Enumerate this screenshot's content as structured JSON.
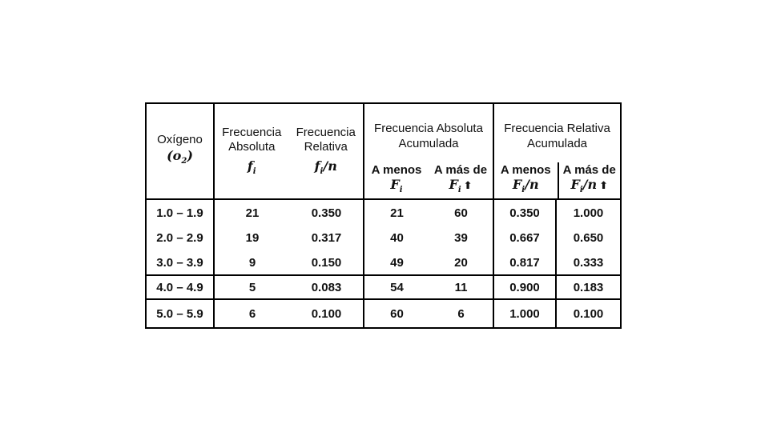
{
  "slide": {
    "background": "#ffffff",
    "line_color": "#000000",
    "text_color": "#111111"
  },
  "table": {
    "header": {
      "oxygen": {
        "title": "Oxígeno",
        "sym": "(o",
        "sym_sub": "2",
        "sym_end": ")"
      },
      "freq_abs": {
        "line1": "Frecuencia",
        "line2": "Absoluta",
        "sym": "f",
        "sym_sub": "i"
      },
      "freq_rel": {
        "line1": "Frecuencia",
        "line2": "Relativa",
        "sym": "f",
        "sym_sub": "i",
        "sym_end": "/n"
      },
      "acc_abs": {
        "title1": "Frecuencia Absoluta",
        "title2": "Acumulada",
        "less": {
          "label": "A menos",
          "sym": "F",
          "sym_sub": "i"
        },
        "more": {
          "label": "A más de",
          "sym": "F",
          "sym_sub": "i",
          "arrow": "⬆"
        }
      },
      "acc_rel": {
        "title1": "Frecuencia Relativa",
        "title2": "Acumulada",
        "less": {
          "label": "A menos",
          "sym": "F",
          "sym_sub": "i",
          "sym_end": "/n"
        },
        "more": {
          "label": "A más de",
          "sym": "F",
          "sym_sub": "i",
          "sym_end": "/n",
          "arrow": "⬆"
        }
      }
    },
    "rows": [
      {
        "range": "1.0 – 1.9",
        "fi": "21",
        "fi_n": "0.350",
        "Fi_less": "21",
        "Fi_more": "60",
        "Fin_less": "0.350",
        "Fin_more": "1.000"
      },
      {
        "range": "2.0 – 2.9",
        "fi": "19",
        "fi_n": "0.317",
        "Fi_less": "40",
        "Fi_more": "39",
        "Fin_less": "0.667",
        "Fin_more": "0.650"
      },
      {
        "range": "3.0 – 3.9",
        "fi": "9",
        "fi_n": "0.150",
        "Fi_less": "49",
        "Fi_more": "20",
        "Fin_less": "0.817",
        "Fin_more": "0.333"
      },
      {
        "range": "4.0 – 4.9",
        "fi": "5",
        "fi_n": "0.083",
        "Fi_less": "54",
        "Fi_more": "11",
        "Fin_less": "0.900",
        "Fin_more": "0.183"
      },
      {
        "range": "5.0 – 5.9",
        "fi": "6",
        "fi_n": "0.100",
        "Fi_less": "60",
        "Fi_more": "6",
        "Fin_less": "1.000",
        "Fin_more": "0.100"
      }
    ]
  }
}
